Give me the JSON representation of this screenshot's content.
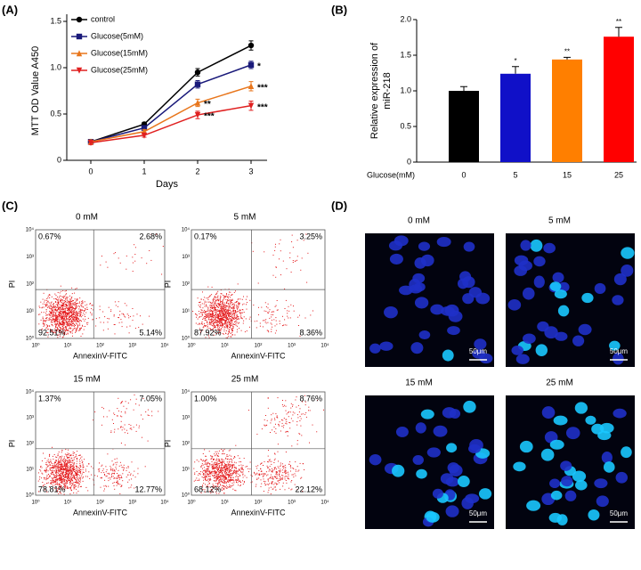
{
  "chart_data": [
    {
      "type": "line",
      "x_label": "Days",
      "y_label": "MTT OD Value A450",
      "x": [
        0,
        1,
        2,
        3
      ],
      "xlim": [
        -0.45,
        3.3
      ],
      "xticks": [
        0,
        1,
        2,
        3
      ],
      "ylim": [
        0,
        1.5
      ],
      "yticks": [
        0,
        0.5,
        {
          "value": 1,
          "label": "1.0"
        },
        1.5
      ],
      "legend": "top-left",
      "series": [
        {
          "name": "control",
          "color": "#000000",
          "marker": "circle",
          "values": [
            0.2,
            0.39,
            0.95,
            1.24
          ],
          "errors": [
            0.02,
            0.02,
            0.04,
            0.05
          ],
          "annotations": [
            null,
            null,
            null,
            null
          ]
        },
        {
          "name": "Glucose(5mM)",
          "color": "#1a1a7a",
          "marker": "square",
          "values": [
            0.2,
            0.35,
            0.82,
            1.03
          ],
          "errors": [
            0.02,
            0.02,
            0.04,
            0.04
          ],
          "annotations": [
            null,
            null,
            null,
            "*"
          ]
        },
        {
          "name": "Glucose(15mM)",
          "color": "#e8761c",
          "marker": "triangle-up",
          "values": [
            0.2,
            0.31,
            0.62,
            0.8
          ],
          "errors": [
            0.02,
            0.02,
            0.04,
            0.05
          ],
          "annotations": [
            null,
            null,
            "**",
            "***"
          ]
        },
        {
          "name": "Glucose(25mM)",
          "color": "#e02020",
          "marker": "triangle-down",
          "values": [
            0.19,
            0.27,
            0.49,
            0.59
          ],
          "errors": [
            0.02,
            0.02,
            0.04,
            0.05
          ],
          "annotations": [
            null,
            null,
            "***",
            "***"
          ]
        }
      ]
    },
    {
      "type": "bar",
      "y_label": [
        "Relative expression of",
        "miR-218"
      ],
      "x_label": "Glucose(mM)",
      "categories": [
        "0",
        "5",
        "15",
        "25"
      ],
      "values": [
        1.0,
        1.24,
        1.44,
        1.76
      ],
      "errors": [
        0.06,
        0.1,
        0.03,
        0.13
      ],
      "colors": [
        "#000000",
        "#1010c8",
        "#ff7f00",
        "#ff0000"
      ],
      "annotations": [
        null,
        "*",
        "**",
        "**"
      ],
      "ylim": [
        0,
        2
      ],
      "yticks": [
        0,
        0.5,
        {
          "value": 1,
          "label": "1.0"
        },
        1.5,
        {
          "value": 2,
          "label": "2.0"
        }
      ]
    }
  ],
  "panel_labels": [
    "(A)",
    "(B)",
    "(C)",
    "(D)"
  ],
  "flow_cytometry": {
    "x_label": "AnnexinV-FITC",
    "y_label": "PI",
    "ticks": [
      "10⁰",
      "10¹",
      "10²",
      "10³",
      "10⁴"
    ],
    "plots": [
      {
        "title": "0 mM",
        "quadrants": [
          "0.67%",
          "2.68%",
          "92.51%",
          "5.14%"
        ]
      },
      {
        "title": "5 mM",
        "quadrants": [
          "0.17%",
          "3.25%",
          "87.92%",
          "8.36%"
        ]
      },
      {
        "title": "15 mM",
        "quadrants": [
          "1.37%",
          "7.05%",
          "78.81%",
          "12.77%"
        ]
      },
      {
        "title": "25 mM",
        "quadrants": [
          "1.00%",
          "8.76%",
          "68.12%",
          "22.12%"
        ]
      }
    ]
  },
  "imaging": {
    "scale_bar": "50μm",
    "images": [
      {
        "title": "0 mM"
      },
      {
        "title": "5 mM"
      },
      {
        "title": "15 mM"
      },
      {
        "title": "25 mM"
      }
    ]
  }
}
